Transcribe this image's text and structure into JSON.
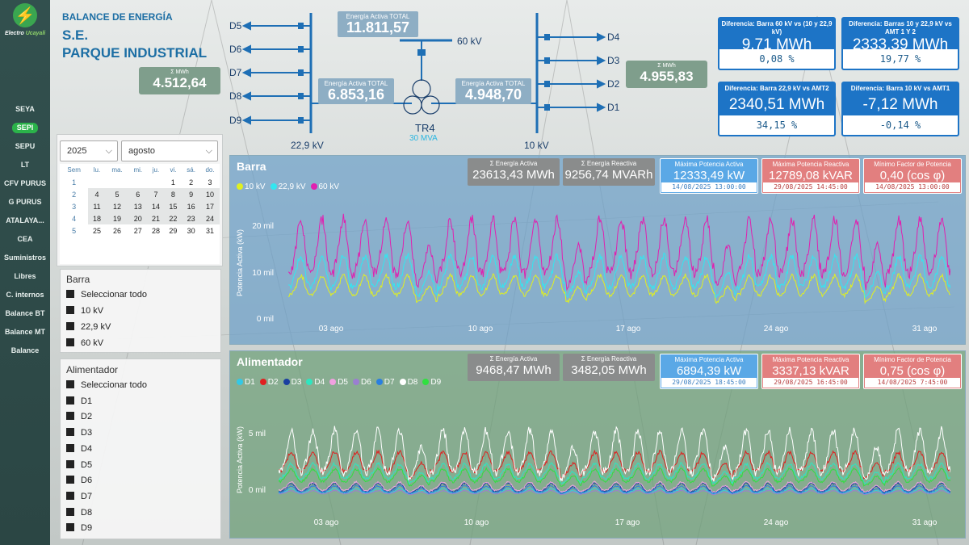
{
  "app": {
    "logo_main": "Electro",
    "logo_accent": "Ucayali"
  },
  "nav": [
    {
      "label": "SEYA"
    },
    {
      "label": "SEPI",
      "active": true
    },
    {
      "label": "SEPU"
    },
    {
      "label": "LT"
    },
    {
      "label": "CFV PURUS"
    },
    {
      "label": "G PURUS"
    },
    {
      "label": "ATALAYA..."
    },
    {
      "label": "CEA"
    },
    {
      "label": "Suministros"
    },
    {
      "label": "Libres"
    },
    {
      "label": "C. internos"
    },
    {
      "label": "Balance BT"
    },
    {
      "label": "Balance MT"
    },
    {
      "label": "Balance"
    }
  ],
  "header": {
    "line1": "BALANCE DE ENERGÍA",
    "line2": "S.E.",
    "line3": "PARQUE INDUSTRIAL"
  },
  "kpi_left": {
    "title": "Σ MWh",
    "value": "4.512,64"
  },
  "kpi_right": {
    "title": "Σ MWh",
    "value": "4.955,83"
  },
  "diagram": {
    "feeders_left": [
      "D5",
      "D6",
      "D7",
      "D8",
      "D9"
    ],
    "feeders_right": [
      "D4",
      "D3",
      "D2",
      "D1"
    ],
    "bus_60": "60 kV",
    "bus_229": "22,9 kV",
    "bus_10": "10 kV",
    "transformer": "TR4",
    "transformer_rating": "30 MVA",
    "total": {
      "title": "Energía Activa TOTAL",
      "value": "11.811,57"
    },
    "left": {
      "title": "Energía Activa TOTAL",
      "value": "6.853,16"
    },
    "right": {
      "title": "Energía Activa TOTAL",
      "value": "4.948,70"
    }
  },
  "diffs": [
    {
      "title": "Diferencia: Barra 60 kV vs (10 y 22,9 kV)",
      "value": "9,71 MWh",
      "pct": "0,08 %"
    },
    {
      "title": "Diferencia: Barras 10 y 22,9 kV vs AMT 1 Y 2",
      "value": "2333,39 MWh",
      "pct": "19,77 %"
    },
    {
      "title": "Diferencia: Barra 22,9 kV vs AMT2",
      "value": "2340,51 MWh",
      "pct": "34,15 %"
    },
    {
      "title": "Diferencia: Barra 10 kV vs AMT1",
      "value": "-7,12 MWh",
      "pct": "-0,14 %"
    }
  ],
  "filters": {
    "year": "2025",
    "month": "agosto"
  },
  "calendar": {
    "headers": [
      "Sem",
      "lu.",
      "ma.",
      "mi.",
      "ju.",
      "vi.",
      "sá.",
      "do."
    ],
    "rows": [
      [
        "1",
        "",
        "",
        "",
        "",
        "1",
        "2",
        "3"
      ],
      [
        "2",
        "4",
        "5",
        "6",
        "7",
        "8",
        "9",
        "10"
      ],
      [
        "3",
        "11",
        "12",
        "13",
        "14",
        "15",
        "16",
        "17"
      ],
      [
        "4",
        "18",
        "19",
        "20",
        "21",
        "22",
        "23",
        "24"
      ],
      [
        "5",
        "25",
        "26",
        "27",
        "28",
        "29",
        "30",
        "31"
      ]
    ]
  },
  "slicer_barra": {
    "title": "Barra",
    "items": [
      "Seleccionar todo",
      "10 kV",
      "22,9 kV",
      "60 kV"
    ]
  },
  "slicer_alim": {
    "title": "Alimentador",
    "items": [
      "Seleccionar todo",
      "D1",
      "D2",
      "D3",
      "D4",
      "D5",
      "D6",
      "D7",
      "D8",
      "D9"
    ]
  },
  "barra": {
    "title": "Barra",
    "cards": [
      {
        "title": "Σ Energía Activa",
        "value": "23613,43 MWh"
      },
      {
        "title": "Σ Energía Reactiva",
        "value": "9256,74 MVARh"
      },
      {
        "title": "Máxima Potencia Activa",
        "value": "12333,49 kW",
        "date": "14/08/2025 13:00:00"
      },
      {
        "title": "Máxima Potencia Reactiva",
        "value": "12789,08 kVAR",
        "date": "29/08/2025 14:45:00"
      },
      {
        "title": "Mínimo Factor de Potencia",
        "value": "0,40 (cos φ)",
        "date": "14/08/2025 13:00:00"
      }
    ],
    "ylabel": "Potencia Activa (kW)",
    "yticks": [
      "20 mil",
      "10 mil",
      "0 mil"
    ],
    "xticks": [
      "03 ago",
      "10 ago",
      "17 ago",
      "24 ago",
      "31 ago"
    ]
  },
  "alim": {
    "title": "Alimentador",
    "cards": [
      {
        "title": "Σ Energía Activa",
        "value": "9468,47 MWh"
      },
      {
        "title": "Σ Energía Reactiva",
        "value": "3482,05 MWh"
      },
      {
        "title": "Máxima Potencia Activa",
        "value": "6894,39 kW",
        "date": "29/08/2025 18:45:00"
      },
      {
        "title": "Máxima Potencia Reactiva",
        "value": "3337,13 kVAR",
        "date": "29/08/2025 16:45:00"
      },
      {
        "title": "Mínimo Factor de Potencia",
        "value": "0,75 (cos φ)",
        "date": "14/08/2025 7:45:00"
      }
    ],
    "ylabel": "Potencia Activa (kW)",
    "yticks": [
      "5 mil",
      "0 mil"
    ],
    "xticks": [
      "03 ago",
      "10 ago",
      "17 ago",
      "24 ago",
      "31 ago"
    ]
  },
  "chart_data": [
    {
      "type": "line",
      "xlabel": "",
      "ylabel": "Potencia Activa (kW)",
      "ylim": [
        0,
        25000
      ],
      "x_range": [
        "2025-08-01",
        "2025-08-31"
      ],
      "series": [
        {
          "name": "10 kV",
          "color": "#e0f020",
          "base": 7000,
          "amp": 2500
        },
        {
          "name": "22,9 kV",
          "color": "#33e6f0",
          "base": 9500,
          "amp": 4000
        },
        {
          "name": "60 kV",
          "color": "#e020b0",
          "base": 14000,
          "amp": 7000
        }
      ]
    },
    {
      "type": "line",
      "xlabel": "",
      "ylabel": "Potencia Activa (kW)",
      "ylim": [
        0,
        7000
      ],
      "x_range": [
        "2025-08-01",
        "2025-08-31"
      ],
      "series": [
        {
          "name": "D1",
          "color": "#33c8e6",
          "base": 400,
          "amp": 200
        },
        {
          "name": "D2",
          "color": "#e02020",
          "base": 2500,
          "amp": 900
        },
        {
          "name": "D3",
          "color": "#1a3fa0",
          "base": 600,
          "amp": 400
        },
        {
          "name": "D4",
          "color": "#2ee6c0",
          "base": 1800,
          "amp": 700
        },
        {
          "name": "D5",
          "color": "#f0a0e0",
          "base": 700,
          "amp": 400
        },
        {
          "name": "D6",
          "color": "#9a7fd0",
          "base": 300,
          "amp": 150
        },
        {
          "name": "D7",
          "color": "#2a7fe0",
          "base": 500,
          "amp": 300
        },
        {
          "name": "D8",
          "color": "#ffffff",
          "base": 3000,
          "amp": 2000
        },
        {
          "name": "D9",
          "color": "#30e040",
          "base": 1500,
          "amp": 600
        }
      ]
    }
  ]
}
